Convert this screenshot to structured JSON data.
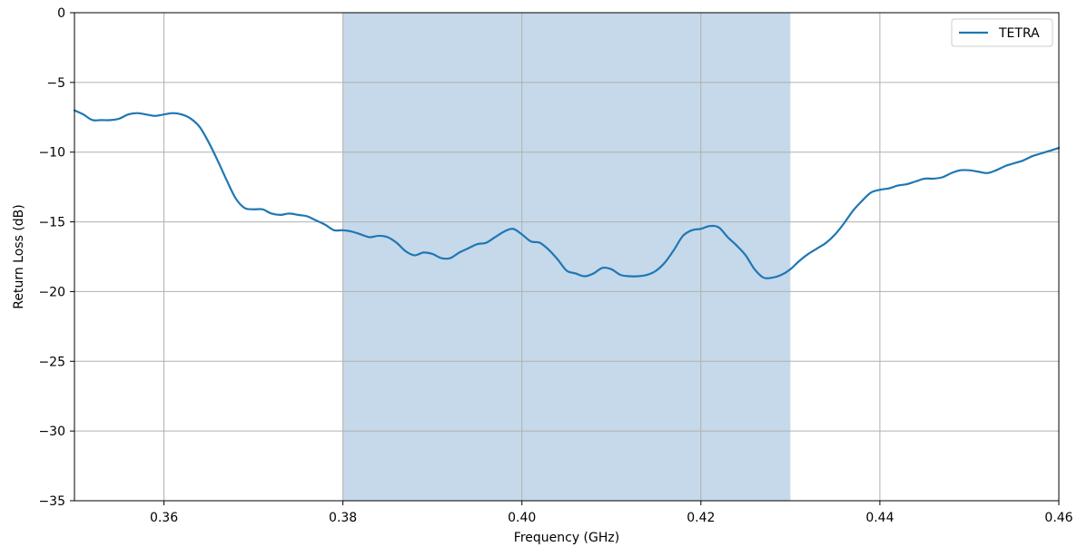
{
  "chart_data": {
    "type": "line",
    "title": "",
    "xlabel": "Frequency (GHz)",
    "ylabel": "Return Loss (dB)",
    "xlim": [
      0.35,
      0.46
    ],
    "ylim": [
      -35,
      0
    ],
    "xticks": [
      0.36,
      0.38,
      0.4,
      0.42,
      0.44,
      0.46
    ],
    "xtick_labels": [
      "0.36",
      "0.38",
      "0.40",
      "0.42",
      "0.44",
      "0.46"
    ],
    "yticks": [
      0,
      -5,
      -10,
      -15,
      -20,
      -25,
      -30,
      -35
    ],
    "ytick_labels": [
      "0",
      "−5",
      "−10",
      "−15",
      "−20",
      "−25",
      "−30",
      "−35"
    ],
    "grid": true,
    "legend_position": "top-right",
    "shaded_band": {
      "x_start": 0.38,
      "x_end": 0.43,
      "color": "#c5d9ea"
    },
    "series": [
      {
        "name": "TETRA",
        "color": "#1f77b4",
        "x": [
          0.35,
          0.351,
          0.352,
          0.353,
          0.354,
          0.355,
          0.356,
          0.357,
          0.358,
          0.359,
          0.36,
          0.361,
          0.362,
          0.363,
          0.364,
          0.365,
          0.366,
          0.367,
          0.368,
          0.369,
          0.37,
          0.371,
          0.372,
          0.373,
          0.374,
          0.375,
          0.376,
          0.377,
          0.378,
          0.379,
          0.38,
          0.381,
          0.382,
          0.383,
          0.384,
          0.385,
          0.386,
          0.387,
          0.388,
          0.389,
          0.39,
          0.391,
          0.392,
          0.393,
          0.394,
          0.395,
          0.396,
          0.397,
          0.398,
          0.399,
          0.4,
          0.401,
          0.402,
          0.403,
          0.404,
          0.405,
          0.406,
          0.407,
          0.408,
          0.409,
          0.41,
          0.411,
          0.412,
          0.413,
          0.414,
          0.415,
          0.416,
          0.417,
          0.418,
          0.419,
          0.42,
          0.421,
          0.422,
          0.423,
          0.424,
          0.425,
          0.426,
          0.427,
          0.428,
          0.429,
          0.43,
          0.431,
          0.432,
          0.433,
          0.434,
          0.435,
          0.436,
          0.437,
          0.438,
          0.439,
          0.44,
          0.441,
          0.442,
          0.443,
          0.444,
          0.445,
          0.446,
          0.447,
          0.448,
          0.449,
          0.45,
          0.451,
          0.452,
          0.453,
          0.454,
          0.455,
          0.456,
          0.457,
          0.458,
          0.459,
          0.46
        ],
        "y": [
          -7.0,
          -7.3,
          -7.7,
          -7.7,
          -7.7,
          -7.6,
          -7.3,
          -7.2,
          -7.3,
          -7.4,
          -7.3,
          -7.2,
          -7.3,
          -7.6,
          -8.2,
          -9.3,
          -10.6,
          -12.0,
          -13.3,
          -14.0,
          -14.1,
          -14.1,
          -14.4,
          -14.5,
          -14.4,
          -14.5,
          -14.6,
          -14.9,
          -15.2,
          -15.6,
          -15.6,
          -15.7,
          -15.9,
          -16.1,
          -16.0,
          -16.1,
          -16.5,
          -17.1,
          -17.4,
          -17.2,
          -17.3,
          -17.6,
          -17.6,
          -17.2,
          -16.9,
          -16.6,
          -16.5,
          -16.1,
          -15.7,
          -15.5,
          -15.9,
          -16.4,
          -16.5,
          -17.0,
          -17.7,
          -18.5,
          -18.7,
          -18.9,
          -18.7,
          -18.3,
          -18.4,
          -18.8,
          -18.9,
          -18.9,
          -18.8,
          -18.5,
          -17.9,
          -17.0,
          -16.0,
          -15.6,
          -15.5,
          -15.3,
          -15.4,
          -16.1,
          -16.7,
          -17.4,
          -18.4,
          -19.0,
          -19.0,
          -18.8,
          -18.4,
          -17.8,
          -17.3,
          -16.9,
          -16.5,
          -15.9,
          -15.1,
          -14.2,
          -13.5,
          -12.9,
          -12.7,
          -12.6,
          -12.4,
          -12.3,
          -12.1,
          -11.9,
          -11.9,
          -11.8,
          -11.5,
          -11.3,
          -11.3,
          -11.4,
          -11.5,
          -11.3,
          -11.0,
          -10.8,
          -10.6,
          -10.3,
          -10.1,
          -9.9,
          -9.7
        ]
      }
    ]
  }
}
